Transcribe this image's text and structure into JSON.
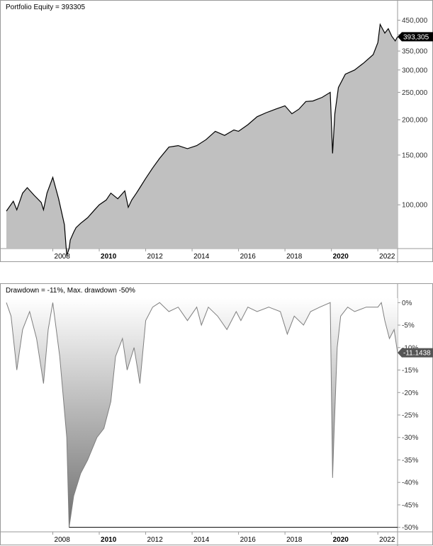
{
  "colors": {
    "fill": "#c0c0c0",
    "line": "#000000",
    "drawdown_line": "#7f7f7f",
    "tag_bg": "#000000",
    "tag_text": "#ffffff",
    "axis_text": "#333333"
  },
  "chart_data": [
    {
      "type": "area",
      "title": "Portfolio Equity = 393305",
      "scale": "log",
      "ylim": [
        70000,
        470000
      ],
      "xlim": [
        2006.0,
        2022.85
      ],
      "x_ticks": [
        "2008",
        "2010",
        "2012",
        "2014",
        "2016",
        "2018",
        "2020",
        "2022"
      ],
      "bold_ticks": [
        "2010",
        "2020"
      ],
      "y_ticks": [
        "450,000",
        "400,000",
        "350,000",
        "300,000",
        "250,000",
        "200,000",
        "150,000",
        "100,000"
      ],
      "last_value_label": "393,305",
      "last_value": 393305,
      "x": [
        2006.0,
        2006.3,
        2006.45,
        2006.7,
        2006.9,
        2007.2,
        2007.5,
        2007.6,
        2007.75,
        2008.0,
        2008.25,
        2008.5,
        2008.6,
        2008.7,
        2008.75,
        2008.9,
        2009.0,
        2009.2,
        2009.5,
        2009.8,
        2010.0,
        2010.3,
        2010.5,
        2010.8,
        2011.1,
        2011.25,
        2011.4,
        2011.6,
        2011.75,
        2012.0,
        2012.3,
        2012.6,
        2013.0,
        2013.4,
        2013.8,
        2014.2,
        2014.6,
        2015.0,
        2015.4,
        2015.8,
        2016.0,
        2016.4,
        2016.8,
        2017.2,
        2017.6,
        2018.0,
        2018.3,
        2018.6,
        2018.9,
        2019.2,
        2019.6,
        2019.95,
        2020.05,
        2020.15,
        2020.3,
        2020.6,
        2021.0,
        2021.4,
        2021.8,
        2022.0,
        2022.1,
        2022.3,
        2022.45,
        2022.6,
        2022.75,
        2022.85
      ],
      "y": [
        95000,
        103000,
        96000,
        110000,
        115000,
        108000,
        102000,
        96000,
        110000,
        125000,
        105000,
        85000,
        66000,
        70000,
        75000,
        80000,
        83000,
        86000,
        90000,
        96000,
        100000,
        104000,
        110000,
        105000,
        112000,
        98000,
        104000,
        110000,
        115000,
        124000,
        135000,
        146000,
        160000,
        162000,
        158000,
        162000,
        170000,
        182000,
        176000,
        184000,
        182000,
        192000,
        205000,
        212000,
        218000,
        224000,
        210000,
        218000,
        232000,
        233000,
        240000,
        250000,
        152000,
        210000,
        260000,
        290000,
        300000,
        318000,
        340000,
        375000,
        435000,
        405000,
        420000,
        395000,
        380000,
        393305
      ]
    },
    {
      "type": "area",
      "title": "Drawdown = -11%, Max. drawdown -50%",
      "ylim": [
        -51,
        1
      ],
      "xlim": [
        2006.0,
        2022.85
      ],
      "x_ticks": [
        "2008",
        "2010",
        "2012",
        "2014",
        "2016",
        "2018",
        "2020",
        "2022"
      ],
      "bold_ticks": [
        "2010",
        "2020"
      ],
      "y_ticks": [
        "0%",
        "-5%",
        "-10%",
        "-15%",
        "-20%",
        "-25%",
        "-30%",
        "-35%",
        "-40%",
        "-45%",
        "-50%"
      ],
      "y_tick_values": [
        0,
        -5,
        -10,
        -15,
        -20,
        -25,
        -30,
        -35,
        -40,
        -45,
        -50
      ],
      "last_value_label": "-11.1438",
      "last_value": -11.1438,
      "x": [
        2006.0,
        2006.2,
        2006.45,
        2006.7,
        2007.0,
        2007.3,
        2007.6,
        2007.8,
        2008.0,
        2008.3,
        2008.6,
        2008.7,
        2008.9,
        2009.2,
        2009.5,
        2009.9,
        2010.2,
        2010.5,
        2010.7,
        2011.0,
        2011.2,
        2011.5,
        2011.75,
        2012.0,
        2012.3,
        2012.6,
        2013.0,
        2013.4,
        2013.8,
        2014.2,
        2014.4,
        2014.7,
        2015.1,
        2015.5,
        2015.9,
        2016.1,
        2016.4,
        2016.8,
        2017.3,
        2017.8,
        2018.1,
        2018.4,
        2018.8,
        2019.1,
        2019.5,
        2019.95,
        2020.05,
        2020.12,
        2020.25,
        2020.4,
        2020.7,
        2021.0,
        2021.5,
        2022.0,
        2022.15,
        2022.3,
        2022.5,
        2022.7,
        2022.85
      ],
      "y": [
        0,
        -3,
        -15,
        -6,
        -2,
        -8,
        -18,
        -6,
        0,
        -12,
        -30,
        -50,
        -43,
        -38,
        -35,
        -30,
        -28,
        -22,
        -12,
        -8,
        -15,
        -10,
        -18,
        -4,
        -1,
        0,
        -2,
        -1,
        -4,
        -1,
        -5,
        -1,
        -3,
        -6,
        -2,
        -4,
        -1,
        -2,
        -1,
        -2,
        -7,
        -3,
        -5,
        -2,
        -1,
        0,
        -39,
        -28,
        -10,
        -3,
        -1,
        -2,
        -1,
        -1,
        0,
        -4,
        -8,
        -6,
        -11.1438
      ]
    }
  ]
}
